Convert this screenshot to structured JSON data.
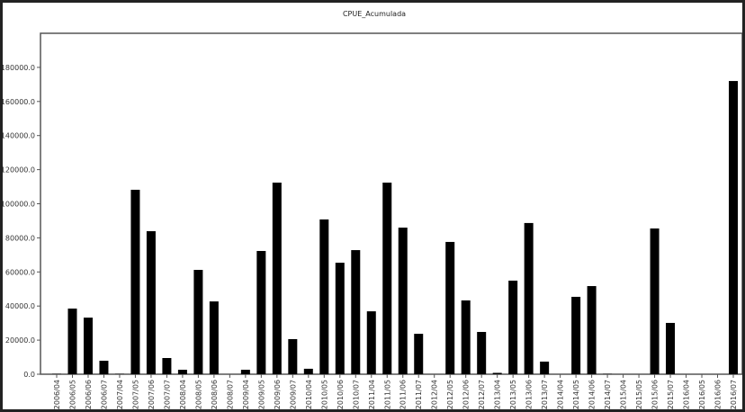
{
  "chart_data": {
    "type": "bar",
    "title": "CPUE_Acumulada",
    "xlabel": "",
    "ylabel": "",
    "ylim": [
      0,
      200000
    ],
    "yticks": [
      0,
      20000,
      40000,
      60000,
      80000,
      100000,
      120000,
      140000,
      160000,
      180000
    ],
    "ytick_labels": [
      "0.0",
      "20000.0",
      "40000.0",
      "60000.0",
      "80000.0",
      "100000.0",
      "120000.0",
      "140000.0",
      "160000.0",
      "180000.0"
    ],
    "grid": false,
    "bar_color": "#000000",
    "categories": [
      "2006/04",
      "2006/05",
      "2006/06",
      "2006/07",
      "2007/04",
      "2007/05",
      "2007/06",
      "2007/07",
      "2008/04",
      "2008/05",
      "2008/06",
      "2008/07",
      "2009/04",
      "2009/05",
      "2009/06",
      "2009/07",
      "2010/04",
      "2010/05",
      "2010/06",
      "2010/07",
      "2011/04",
      "2011/05",
      "2011/06",
      "2011/07",
      "2012/04",
      "2012/05",
      "2012/06",
      "2012/07",
      "2013/04",
      "2013/05",
      "2013/06",
      "2013/07",
      "2014/04",
      "2014/05",
      "2014/06",
      "2014/07",
      "2015/04",
      "2015/05",
      "2015/06",
      "2015/07",
      "2016/04",
      "2016/05",
      "2016/06",
      "2016/07"
    ],
    "values": [
      200,
      38500,
      33200,
      7900,
      200,
      108200,
      83900,
      9500,
      2600,
      61200,
      42700,
      0,
      2600,
      72300,
      112400,
      20600,
      3200,
      90800,
      65400,
      72800,
      36900,
      112400,
      86000,
      23700,
      0,
      77600,
      43300,
      24800,
      800,
      54900,
      88700,
      7400,
      0,
      45400,
      51700,
      200,
      0,
      0,
      85500,
      30100,
      0,
      0,
      0,
      172000
    ]
  }
}
